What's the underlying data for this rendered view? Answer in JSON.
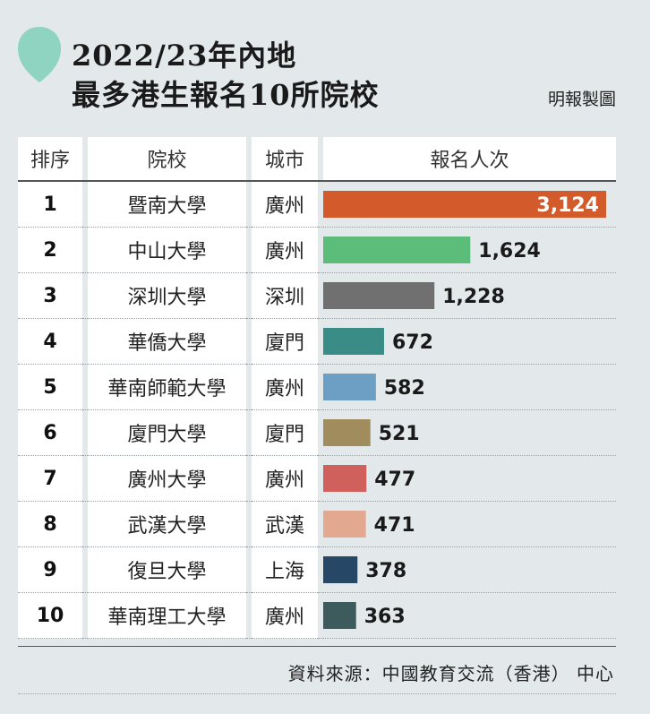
{
  "title_line1": "2022/23年內地",
  "title_line2": "最多港生報名10所院校",
  "credit": "明報製圖",
  "headers": {
    "rank": "排序",
    "university": "院校",
    "city": "城市",
    "applicants": "報名人次"
  },
  "source": "資料來源：中國教育交流（香港） 中心",
  "chart_data": {
    "type": "bar",
    "orientation": "horizontal",
    "categories": [
      "暨南大學",
      "中山大學",
      "深圳大學",
      "華僑大學",
      "華南師範大學",
      "廈門大學",
      "廣州大學",
      "武漢大學",
      "復旦大學",
      "華南理工大學"
    ],
    "ranks": [
      "1",
      "2",
      "3",
      "4",
      "5",
      "6",
      "7",
      "8",
      "9",
      "10"
    ],
    "cities": [
      "廣州",
      "廣州",
      "深圳",
      "廈門",
      "廣州",
      "廈門",
      "廣州",
      "武漢",
      "上海",
      "廣州"
    ],
    "values": [
      3124,
      1624,
      1228,
      672,
      582,
      521,
      477,
      471,
      378,
      363
    ],
    "value_labels": [
      "3,124",
      "1,624",
      "1,228",
      "672",
      "582",
      "521",
      "477",
      "471",
      "378",
      "363"
    ],
    "colors": [
      "#d35a2a",
      "#5cbd7b",
      "#707070",
      "#3a8d87",
      "#6d9fc4",
      "#a08c5c",
      "#d0605b",
      "#e3a890",
      "#264766",
      "#3d5a5c"
    ],
    "first_label_inside": true,
    "xlim": [
      0,
      3124
    ]
  }
}
